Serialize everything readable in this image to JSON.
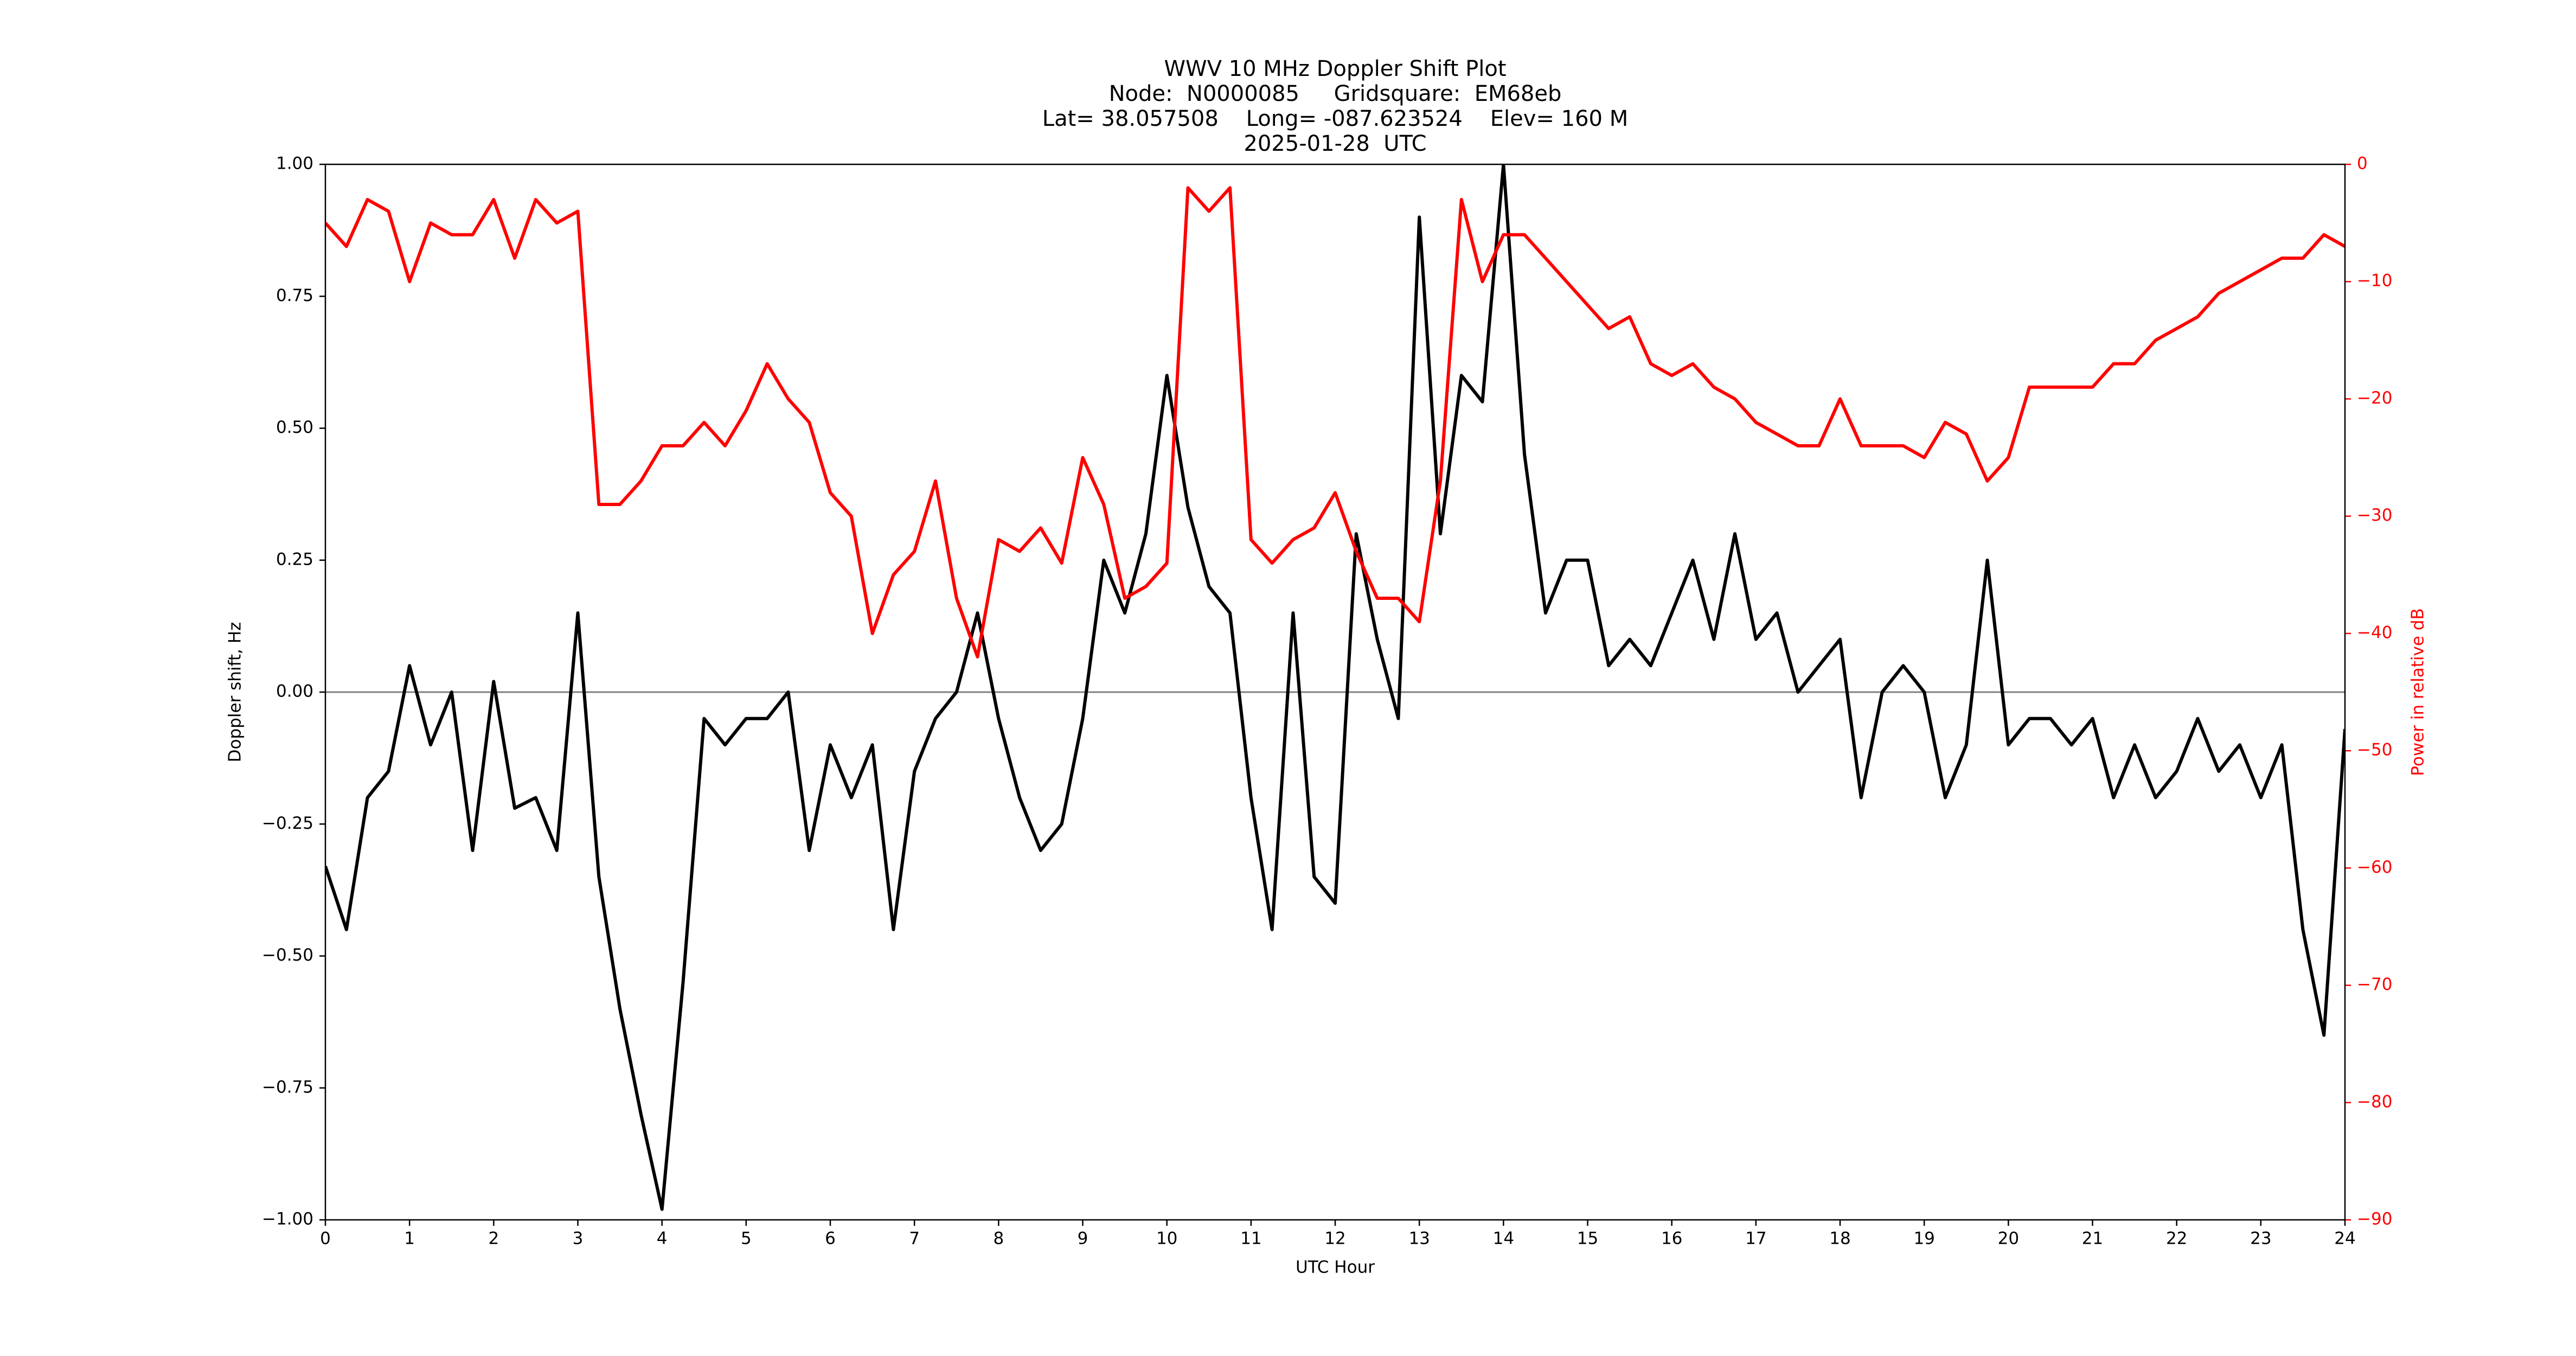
{
  "chart_data": {
    "type": "line",
    "title": [
      "WWV 10 MHz Doppler Shift Plot",
      "Node:  N0000085     Gridsquare:  EM68eb",
      "Lat= 38.057508    Long= -087.623524    Elev= 160 M",
      "2025-01-28  UTC"
    ],
    "xlabel": "UTC Hour",
    "ylabel": "Doppler shift, Hz",
    "y2label": "Power in relative dB",
    "zero_line": true,
    "x": [
      0,
      0.25,
      0.5,
      0.75,
      1,
      1.25,
      1.5,
      1.75,
      2,
      2.25,
      2.5,
      2.75,
      3,
      3.25,
      3.5,
      3.75,
      4,
      4.25,
      4.5,
      4.75,
      5,
      5.25,
      5.5,
      5.75,
      6,
      6.25,
      6.5,
      6.75,
      7,
      7.25,
      7.5,
      7.75,
      8,
      8.25,
      8.5,
      8.75,
      9,
      9.25,
      9.5,
      9.75,
      10,
      10.25,
      10.5,
      10.75,
      11,
      11.25,
      11.5,
      11.75,
      12,
      12.25,
      12.5,
      12.75,
      13,
      13.25,
      13.5,
      13.75,
      14,
      14.25,
      14.5,
      14.75,
      15,
      15.25,
      15.5,
      15.75,
      16,
      16.25,
      16.5,
      16.75,
      17,
      17.25,
      17.5,
      17.75,
      18,
      18.25,
      18.5,
      18.75,
      19,
      19.25,
      19.5,
      19.75,
      20,
      20.25,
      20.5,
      20.75,
      21,
      21.25,
      21.5,
      21.75,
      22,
      22.25,
      22.5,
      22.75,
      23,
      23.25,
      23.5,
      23.75,
      24
    ],
    "series": [
      {
        "name": "Doppler shift",
        "color": "#000000",
        "axis": "y",
        "values": [
          -0.33,
          -0.45,
          -0.2,
          -0.15,
          0.05,
          -0.1,
          0.0,
          -0.3,
          0.02,
          -0.22,
          -0.2,
          -0.3,
          0.15,
          -0.35,
          -0.6,
          -0.8,
          -0.98,
          -0.55,
          -0.05,
          -0.1,
          -0.05,
          -0.05,
          0.0,
          -0.3,
          -0.1,
          -0.2,
          -0.1,
          -0.45,
          -0.15,
          -0.05,
          0.0,
          0.15,
          -0.05,
          -0.2,
          -0.3,
          -0.25,
          -0.05,
          0.25,
          0.15,
          0.3,
          0.6,
          0.35,
          0.2,
          0.15,
          -0.2,
          -0.45,
          0.15,
          -0.35,
          -0.4,
          0.3,
          0.1,
          -0.05,
          0.9,
          0.3,
          0.6,
          0.55,
          1.0,
          0.45,
          0.15,
          0.25,
          0.25,
          0.05,
          0.1,
          0.05,
          0.15,
          0.25,
          0.1,
          0.3,
          0.1,
          0.15,
          0.0,
          0.05,
          0.1,
          -0.2,
          0.0,
          0.05,
          0.0,
          -0.2,
          -0.1,
          0.25,
          -0.1,
          -0.05,
          -0.05,
          -0.1,
          -0.05,
          -0.2,
          -0.1,
          -0.2,
          -0.15,
          -0.05,
          -0.15,
          -0.1,
          -0.2,
          -0.1,
          -0.45,
          -0.65,
          -0.07
        ]
      },
      {
        "name": "Power",
        "color": "#ff0000",
        "axis": "y2",
        "values": [
          -5,
          -7,
          -3,
          -4,
          -10,
          -5,
          -6,
          -6,
          -3,
          -8,
          -3,
          -5,
          -4,
          -29,
          -29,
          -27,
          -24,
          -24,
          -22,
          -24,
          -21,
          -17,
          -20,
          -22,
          -28,
          -30,
          -40,
          -35,
          -33,
          -27,
          -37,
          -42,
          -32,
          -33,
          -31,
          -34,
          -25,
          -29,
          -37,
          -36,
          -34,
          -2,
          -4,
          -2,
          -32,
          -34,
          -32,
          -31,
          -28,
          -33,
          -37,
          -37,
          -39,
          -27,
          -3,
          -10,
          -6,
          -6,
          -8,
          -10,
          -12,
          -14,
          -13,
          -17,
          -18,
          -17,
          -19,
          -20,
          -22,
          -23,
          -24,
          -24,
          -20,
          -24,
          -24,
          -24,
          -25,
          -22,
          -23,
          -27,
          -25,
          -19,
          -19,
          -19,
          -19,
          -17,
          -17,
          -15,
          -14,
          -13,
          -11,
          -10,
          -9,
          -8,
          -8,
          -6,
          -7
        ]
      }
    ],
    "xlim": [
      0,
      24
    ],
    "xticks": [
      0,
      1,
      2,
      3,
      4,
      5,
      6,
      7,
      8,
      9,
      10,
      11,
      12,
      13,
      14,
      15,
      16,
      17,
      18,
      19,
      20,
      21,
      22,
      23,
      24
    ],
    "ylim": [
      -1,
      1
    ],
    "yticks": [
      {
        "value": -1,
        "label": "−1.00"
      },
      {
        "value": -0.75,
        "label": "−0.75"
      },
      {
        "value": -0.5,
        "label": "−0.50"
      },
      {
        "value": -0.25,
        "label": "−0.25"
      },
      {
        "value": 0,
        "label": "0.00"
      },
      {
        "value": 0.25,
        "label": "0.25"
      },
      {
        "value": 0.5,
        "label": "0.50"
      },
      {
        "value": 0.75,
        "label": "0.75"
      },
      {
        "value": 1,
        "label": "1.00"
      }
    ],
    "y2lim": [
      -90,
      0
    ],
    "y2ticks": [
      {
        "value": -90,
        "label": "−90"
      },
      {
        "value": -80,
        "label": "−80"
      },
      {
        "value": -70,
        "label": "−70"
      },
      {
        "value": -60,
        "label": "−60"
      },
      {
        "value": -50,
        "label": "−50"
      },
      {
        "value": -40,
        "label": "−40"
      },
      {
        "value": -30,
        "label": "−30"
      },
      {
        "value": -20,
        "label": "−20"
      },
      {
        "value": -10,
        "label": "−10"
      },
      0
    ],
    "y2color": "#ff0000"
  }
}
